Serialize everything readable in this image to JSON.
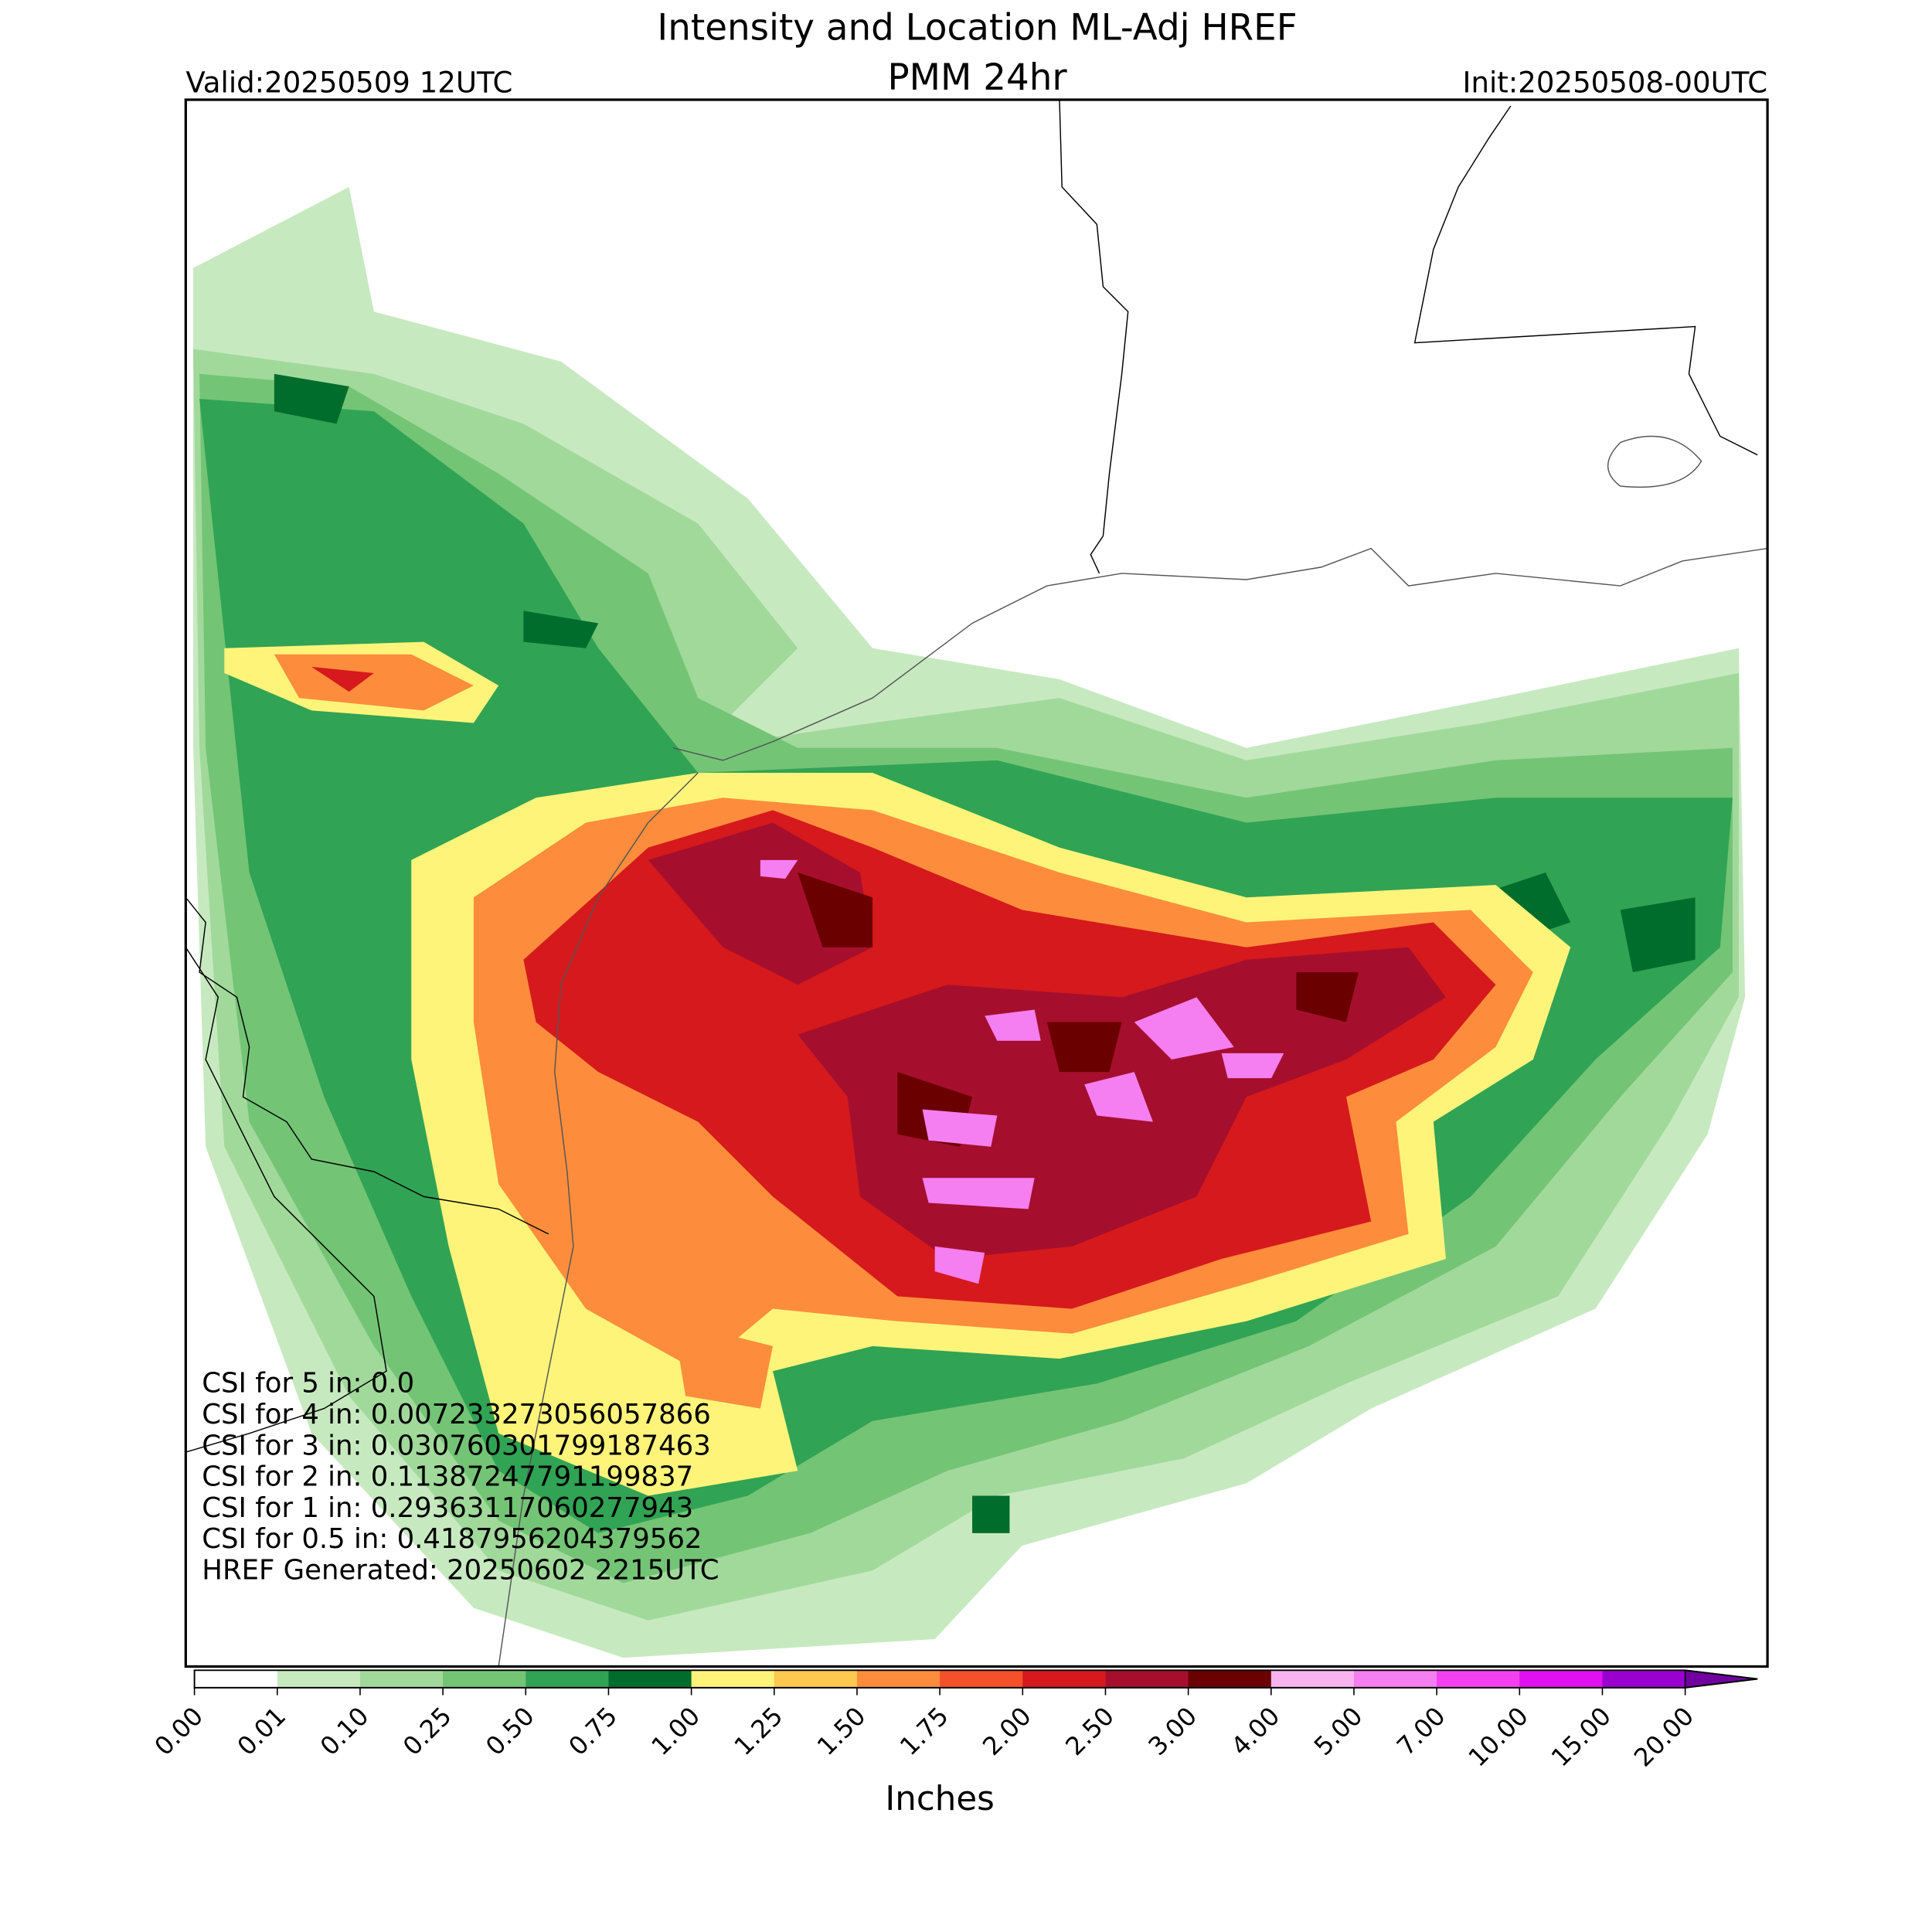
{
  "header": {
    "title_line1": "Intensity and Location ML-Adj HREF",
    "title_line2": "PMM 24hr",
    "valid": "Valid:20250509 12UTC",
    "init": "Init:20250508-00UTC"
  },
  "annotations": [
    "CSI for 5 in: 0.0",
    "CSI for 4 in: 0.007233273056057866",
    "CSI for 3 in: 0.030760301799187463",
    "CSI for 2 in: 0.11387247791199837",
    "CSI for 1 in: 0.29363117060277943",
    "CSI for 0.5 in: 0.4187956204379562",
    "HREF Generated: 20250602 2215UTC"
  ],
  "colorbar": {
    "label": "Inches",
    "ticks": [
      {
        "value": 0,
        "label": "0.00"
      },
      {
        "value": 0.01,
        "label": "0.01"
      },
      {
        "value": 0.1,
        "label": "0.10"
      },
      {
        "value": 0.25,
        "label": "0.25"
      },
      {
        "value": 0.5,
        "label": "0.50"
      },
      {
        "value": 0.75,
        "label": "0.75"
      },
      {
        "value": 1,
        "label": "1.00"
      },
      {
        "value": 1.25,
        "label": "1.25"
      },
      {
        "value": 1.5,
        "label": "1.50"
      },
      {
        "value": 1.75,
        "label": "1.75"
      },
      {
        "value": 2,
        "label": "2.00"
      },
      {
        "value": 2.5,
        "label": "2.50"
      },
      {
        "value": 3,
        "label": "3.00"
      },
      {
        "value": 4,
        "label": "4.00"
      },
      {
        "value": 5,
        "label": "5.00"
      },
      {
        "value": 7,
        "label": "7.00"
      },
      {
        "value": 10,
        "label": "10.00"
      },
      {
        "value": 15,
        "label": "15.00"
      },
      {
        "value": 20,
        "label": "20.00"
      }
    ],
    "colors": [
      "#ffffff",
      "#c7e9c0",
      "#a1d99b",
      "#74c476",
      "#31a354",
      "#006d2c",
      "#fff47a",
      "#ffc84e",
      "#fd8d3c",
      "#f4502a",
      "#d6191c",
      "#a50f2d",
      "#6b0000",
      "#f9b4f0",
      "#f57ef0",
      "#f440f0",
      "#e010f0",
      "#9a00cf"
    ],
    "over_color": "#70009f"
  }
}
